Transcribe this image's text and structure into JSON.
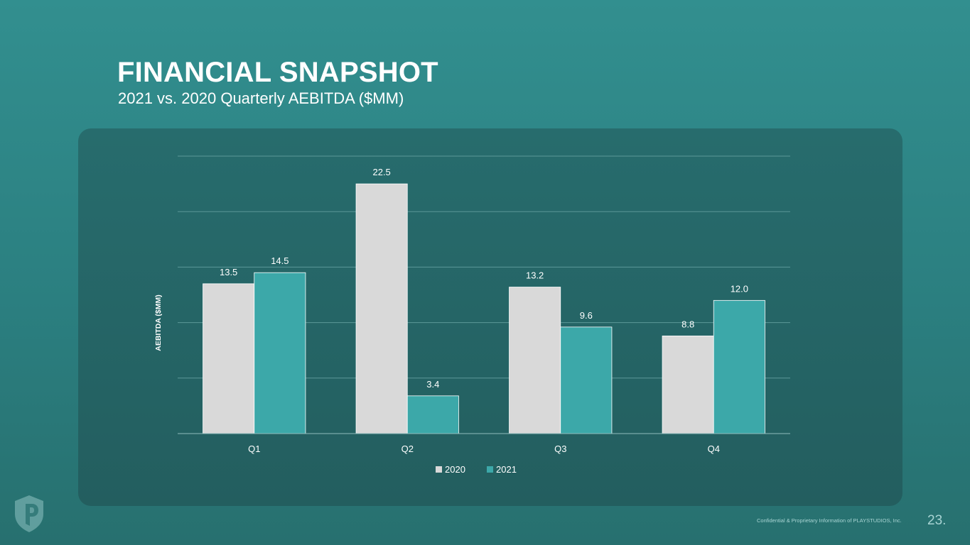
{
  "slide": {
    "title": "FINANCIAL SNAPSHOT",
    "subtitle": "2021 vs. 2020 Quarterly AEBITDA ($MM)",
    "footer": "Confidential & Proprietary Information of PLAYSTUDIOS, Inc.",
    "page_number": "23."
  },
  "logo": {
    "icon": "playstudios-shield-icon"
  },
  "chart_data": {
    "type": "bar",
    "categories": [
      "Q1",
      "Q2",
      "Q3",
      "Q4"
    ],
    "series": [
      {
        "name": "2020",
        "values": [
          13.5,
          22.5,
          13.2,
          8.8
        ],
        "labels": [
          "13.5",
          "22.5",
          "13.2",
          "8.8"
        ],
        "color": "#d9d9d9"
      },
      {
        "name": "2021",
        "values": [
          14.5,
          3.4,
          9.6,
          12.0
        ],
        "labels": [
          "14.5",
          "3.4",
          "9.6",
          "12.0"
        ],
        "color": "#3ca8a9"
      }
    ],
    "ylabel": "AEBITDA ($MM)",
    "xlabel": "",
    "ylim": [
      0,
      25
    ],
    "gridlines": [
      5,
      10,
      15,
      20,
      25
    ],
    "grid": true,
    "legend_position": "bottom-center"
  }
}
